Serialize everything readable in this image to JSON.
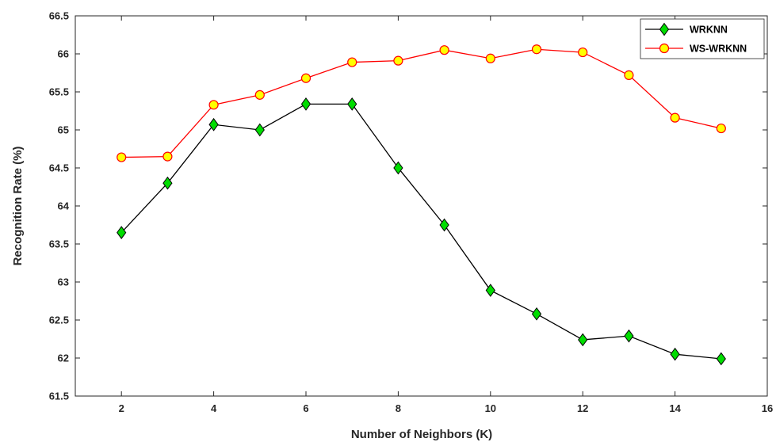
{
  "chart_data": {
    "type": "line",
    "xlabel": "Number of Neighbors (K)",
    "ylabel": "Recognition Rate (%)",
    "xlim": [
      1,
      16
    ],
    "ylim": [
      61.5,
      66.5
    ],
    "xticks": [
      2,
      4,
      6,
      8,
      10,
      12,
      14,
      16
    ],
    "xtick_labels": [
      "2",
      "4",
      "6",
      "8",
      "10",
      "12",
      "14",
      "16"
    ],
    "yticks": [
      61.5,
      62,
      62.5,
      63,
      63.5,
      64,
      64.5,
      65,
      65.5,
      66,
      66.5
    ],
    "ytick_labels": [
      "61.5",
      "62",
      "62.5",
      "63",
      "63.5",
      "64",
      "64.5",
      "65",
      "65.5",
      "66",
      "66.5"
    ],
    "grid": false,
    "legend_position": "top-right",
    "x": [
      2,
      3,
      4,
      5,
      6,
      7,
      8,
      9,
      10,
      11,
      12,
      13,
      14,
      15
    ],
    "series": [
      {
        "name": "WRKNN",
        "color": "#000000",
        "marker": "diamond",
        "marker_color": "#00dd00",
        "values": [
          63.65,
          64.3,
          65.07,
          65.0,
          65.34,
          65.34,
          64.5,
          63.75,
          62.89,
          62.58,
          62.24,
          62.29,
          62.05,
          61.99
        ]
      },
      {
        "name": "WS-WRKNN",
        "color": "#ff0000",
        "marker": "circle",
        "marker_color": "#ffff00",
        "values": [
          64.64,
          64.65,
          65.33,
          65.46,
          65.68,
          65.89,
          65.91,
          66.05,
          65.94,
          66.06,
          66.02,
          65.72,
          65.16,
          65.02
        ]
      }
    ]
  }
}
